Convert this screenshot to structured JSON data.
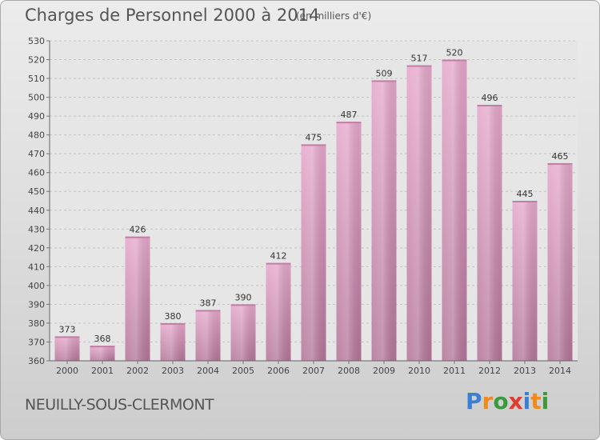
{
  "header": {
    "title": "Charges de Personnel 2000 à 2014",
    "subtitle": "(en milliers d'€)"
  },
  "footer": {
    "commune": "NEUILLY-SOUS-CLERMONT"
  },
  "logo": {
    "text": "Proxiti",
    "letters": [
      "P",
      "r",
      "o",
      "x",
      "i",
      "t",
      "i"
    ],
    "colors": [
      "#3b7fd4",
      "#f08a1c",
      "#3b9a3b",
      "#e03c2e",
      "#3b7fd4",
      "#f08a1c",
      "#3b9a3b"
    ]
  },
  "chart_data": {
    "type": "bar",
    "title": "Charges de Personnel 2000 à 2014",
    "subtitle": "(en milliers d'€)",
    "categories": [
      "2000",
      "2001",
      "2002",
      "2003",
      "2004",
      "2005",
      "2006",
      "2007",
      "2008",
      "2009",
      "2010",
      "2011",
      "2012",
      "2013",
      "2014"
    ],
    "values": [
      373,
      368,
      426,
      380,
      387,
      390,
      412,
      475,
      487,
      509,
      517,
      520,
      496,
      445,
      465
    ],
    "ylim": [
      360,
      530
    ],
    "yticks": [
      360,
      370,
      380,
      390,
      400,
      410,
      420,
      430,
      440,
      450,
      460,
      470,
      480,
      490,
      500,
      510,
      520,
      530
    ],
    "grid": true,
    "bar_color": "#d98fb8",
    "bar_color_dark": "#b5779a"
  }
}
